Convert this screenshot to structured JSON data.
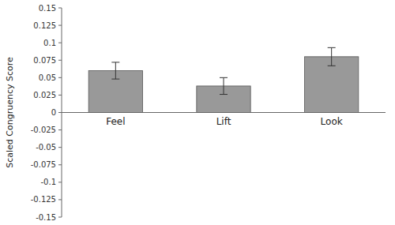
{
  "chart_data": {
    "type": "bar",
    "categories": [
      "Feel",
      "Lift",
      "Look"
    ],
    "values": [
      0.06,
      0.038,
      0.08
    ],
    "errors": [
      0.012,
      0.012,
      0.013
    ],
    "color": "#999999",
    "ylabel": "Scaled Congruency Score",
    "ylim": [
      -0.15,
      0.15
    ],
    "yticks": [
      -0.15,
      -0.125,
      -0.1,
      -0.075,
      -0.05,
      -0.025,
      0,
      0.025,
      0.05,
      0.075,
      0.1,
      0.125,
      0.15
    ],
    "grid": false
  }
}
